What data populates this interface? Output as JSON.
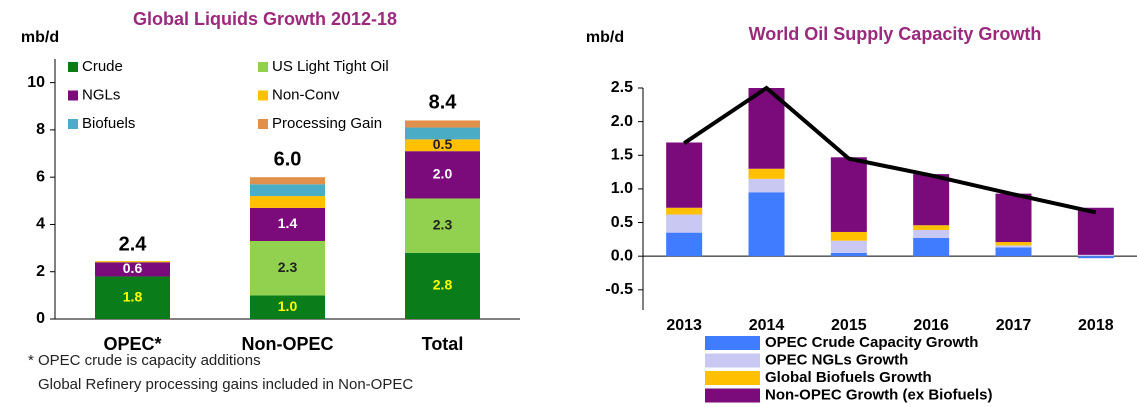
{
  "chart_data": [
    {
      "type": "stacked_bar",
      "title": "Global Liquids Growth 2012-18",
      "ylabel": "mb/d",
      "categories": [
        "OPEC*",
        "Non-OPEC",
        "Total"
      ],
      "ylim": [
        0,
        11
      ],
      "yticks": [
        0,
        2,
        4,
        6,
        8,
        10
      ],
      "series": [
        {
          "name": "Crude",
          "color": "#0a7d1a",
          "values": [
            1.8,
            1.0,
            2.8
          ],
          "value_labels": [
            "1.8",
            "1.0",
            "2.8"
          ]
        },
        {
          "name": "US Light Tight Oil",
          "color": "#92d050",
          "values": [
            0,
            2.3,
            2.3
          ],
          "value_labels": [
            null,
            "2.3",
            "2.3"
          ]
        },
        {
          "name": "NGLs",
          "color": "#7b0a7b",
          "values": [
            0.6,
            1.4,
            2.0
          ],
          "value_labels": [
            "0.6",
            "1.4",
            "2.0"
          ]
        },
        {
          "name": "Non-Conv",
          "color": "#ffc000",
          "values": [
            0.05,
            0.5,
            0.5
          ],
          "value_labels": [
            null,
            null,
            "0.5"
          ]
        },
        {
          "name": "Biofuels",
          "color": "#4bacc6",
          "values": [
            0,
            0.5,
            0.5
          ],
          "value_labels": [
            null,
            null,
            null
          ]
        },
        {
          "name": "Processing Gain",
          "color": "#e0904a",
          "values": [
            0,
            0.3,
            0.3
          ],
          "value_labels": [
            null,
            null,
            null
          ]
        }
      ],
      "totals": [
        2.4,
        6.0,
        8.4
      ],
      "total_labels": [
        "2.4",
        "6.0",
        "8.4"
      ],
      "notes": [
        "* OPEC crude is capacity additions",
        "Global Refinery processing gains included in Non-OPEC"
      ]
    },
    {
      "type": "stacked_bar_line",
      "title": "World Oil Supply Capacity Growth",
      "ylabel": "mb/d",
      "categories": [
        "2013",
        "2014",
        "2015",
        "2016",
        "2017",
        "2018"
      ],
      "ylim": [
        -0.8,
        2.5
      ],
      "yticks": [
        {
          "value": -0.5,
          "label": "-0.5"
        },
        {
          "value": 0,
          "label": "0.0"
        },
        0.5,
        {
          "value": 1,
          "label": "1.0"
        },
        1.5,
        {
          "value": 2,
          "label": "2.0"
        },
        2.5
      ],
      "series": [
        {
          "name": "OPEC Crude Capacity Growth",
          "color": "#3f7cff",
          "values": [
            0.35,
            0.95,
            0.05,
            0.27,
            0.13,
            -0.03
          ]
        },
        {
          "name": "OPEC NGLs Growth",
          "color": "#c8c8f2",
          "values": [
            0.27,
            0.2,
            0.18,
            0.12,
            0.03,
            0.02
          ]
        },
        {
          "name": "Global Biofuels Growth",
          "color": "#ffc000",
          "values": [
            0.1,
            0.15,
            0.13,
            0.07,
            0.05,
            0
          ]
        },
        {
          "name": "Non-OPEC Growth (ex Biofuels)",
          "color": "#7b0a7b",
          "values": [
            0.97,
            1.2,
            1.11,
            0.76,
            0.72,
            0.7
          ]
        }
      ],
      "line": {
        "color": "#000000",
        "values": [
          1.68,
          2.5,
          1.45,
          1.2,
          0.92,
          0.65
        ]
      }
    }
  ]
}
